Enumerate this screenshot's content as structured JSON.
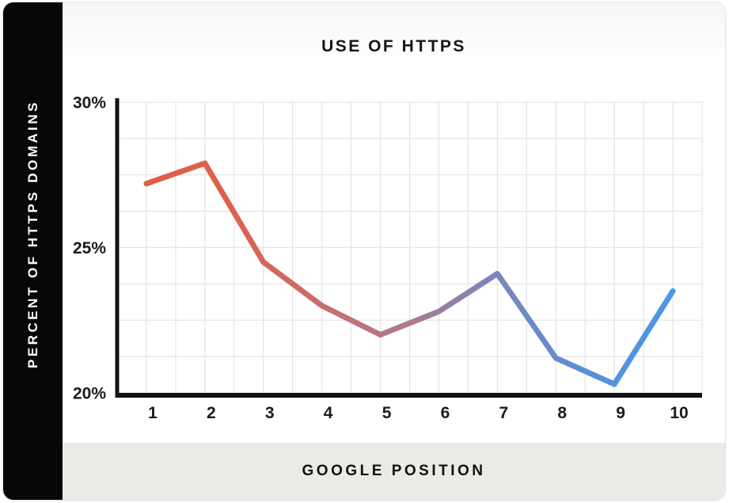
{
  "chart_data": {
    "type": "line",
    "title": "USE OF HTTPS",
    "xlabel": "GOOGLE POSITION",
    "ylabel": "PERCENT OF HTTPS DOMAINS",
    "x": [
      1,
      2,
      3,
      4,
      5,
      6,
      7,
      8,
      9,
      10
    ],
    "values": [
      27.2,
      27.9,
      24.5,
      23.0,
      22.0,
      22.8,
      24.1,
      21.2,
      20.3,
      23.5
    ],
    "ylim": [
      20,
      30
    ],
    "y_ticks": [
      20,
      25,
      30
    ],
    "y_tick_labels": [
      "20%",
      "25%",
      "30%"
    ],
    "x_tick_labels": [
      "1",
      "2",
      "3",
      "4",
      "5",
      "6",
      "7",
      "8",
      "9",
      "10"
    ],
    "grid": true,
    "y_grid_step": 1.25,
    "x_gridlines_per_unit": 2,
    "legend": "none",
    "line_width": 7,
    "line_gradient": [
      {
        "offset": 0.0,
        "color": "#e05e45"
      },
      {
        "offset": 0.18,
        "color": "#db6350"
      },
      {
        "offset": 0.35,
        "color": "#c37170"
      },
      {
        "offset": 0.5,
        "color": "#ac7a91"
      },
      {
        "offset": 0.66,
        "color": "#7c86bb"
      },
      {
        "offset": 0.84,
        "color": "#5990d6"
      },
      {
        "offset": 1.0,
        "color": "#4b98e6"
      }
    ]
  },
  "colors": {
    "sidebar_bg": "#070707",
    "footer_bg": "#ebeae7",
    "grid": "#e6e6e6",
    "axis": "#121212",
    "tick_text": "#1b1b1b",
    "card_border": "#e3e3e1"
  }
}
